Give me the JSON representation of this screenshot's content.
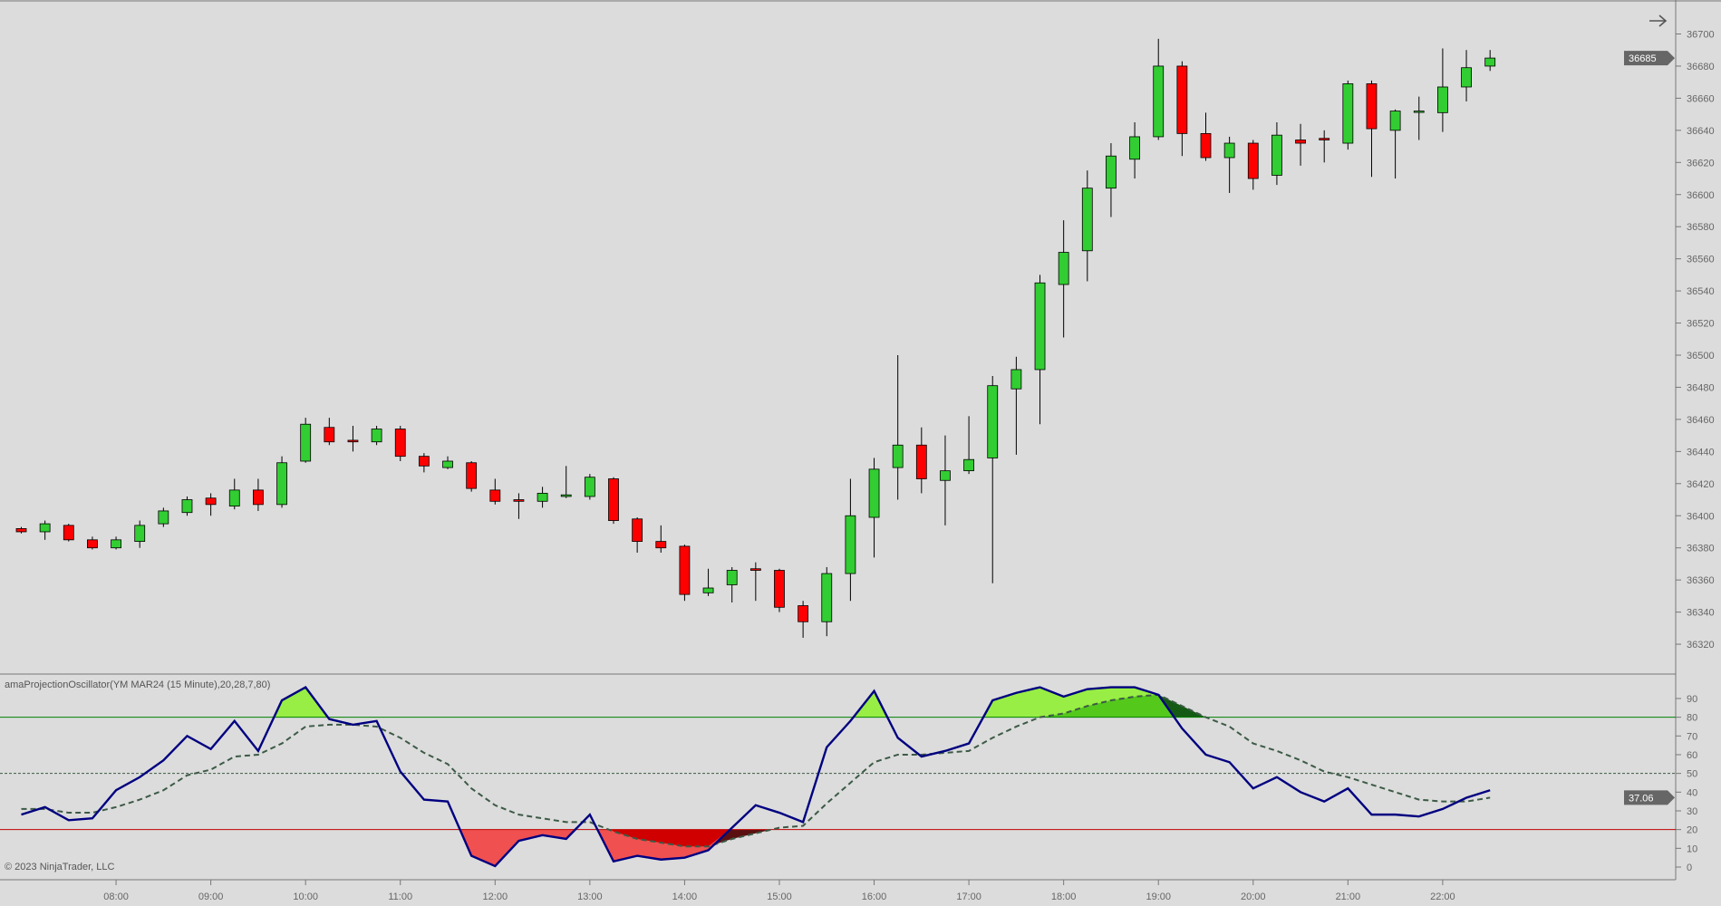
{
  "indicator_label": "amaProjectionOscillator(YM MAR24 (15 Minute),20,28,7,80)",
  "copyright": "© 2023 NinjaTrader, LLC",
  "icons": {
    "scroll": "arrow-right-icon"
  },
  "colors": {
    "up": "#32cd32",
    "down": "#ff0000",
    "oscillator": "#000080",
    "signal": "#3c5a46",
    "overbought_line": "#008000",
    "oversold_line": "#c00000",
    "ob_fill": "#98ee44",
    "ob_fill_both": "#55c81c",
    "ob_fill_signal": "#145a14",
    "os_fill": "#f05050",
    "os_fill_both": "#d00000",
    "os_fill_signal": "#5a1010"
  },
  "chart_data": [
    {
      "type": "candlestick",
      "instrument": "YM MAR24",
      "interval": "15 Minute",
      "x_ticks": [
        "08:00",
        "09:00",
        "10:00",
        "11:00",
        "12:00",
        "13:00",
        "14:00",
        "15:00",
        "16:00",
        "17:00",
        "18:00",
        "19:00",
        "20:00",
        "21:00",
        "22:00"
      ],
      "y_ticks": [
        36700,
        36680,
        36660,
        36640,
        36620,
        36600,
        36580,
        36560,
        36540,
        36520,
        36500,
        36480,
        36460,
        36440,
        36420,
        36400,
        36380,
        36360,
        36340,
        36320
      ],
      "ylim": [
        36300,
        36705
      ],
      "last_price": "36685",
      "times": [
        "07:00",
        "07:15",
        "07:30",
        "07:45",
        "08:00",
        "08:15",
        "08:30",
        "08:45",
        "09:00",
        "09:15",
        "09:30",
        "09:45",
        "10:00",
        "10:15",
        "10:30",
        "10:45",
        "11:00",
        "11:15",
        "11:30",
        "11:45",
        "12:00",
        "12:15",
        "12:30",
        "12:45",
        "13:00",
        "13:15",
        "13:30",
        "13:45",
        "14:00",
        "14:15",
        "14:30",
        "14:45",
        "15:00",
        "15:15",
        "15:30",
        "15:45",
        "16:00",
        "16:15",
        "16:30",
        "16:45",
        "17:00",
        "17:15",
        "17:30",
        "17:45",
        "18:00",
        "18:15",
        "18:30",
        "18:45",
        "19:00",
        "19:15",
        "19:30",
        "19:45",
        "20:00",
        "20:15",
        "20:30",
        "20:45",
        "21:00",
        "21:15",
        "21:30",
        "21:45",
        "22:00",
        "22:15",
        "22:30"
      ],
      "ohlc": [
        [
          36392,
          36393,
          36389,
          36390
        ],
        [
          36390,
          36397,
          36385,
          36395
        ],
        [
          36394,
          36395,
          36384,
          36385
        ],
        [
          36385,
          36387,
          36379,
          36380
        ],
        [
          36380,
          36387,
          36379,
          36385
        ],
        [
          36384,
          36397,
          36380,
          36394
        ],
        [
          36395,
          36405,
          36393,
          36403
        ],
        [
          36402,
          36412,
          36400,
          36410
        ],
        [
          36411,
          36414,
          36400,
          36407
        ],
        [
          36406,
          36423,
          36404,
          36416
        ],
        [
          36416,
          36423,
          36403,
          36407
        ],
        [
          36407,
          36437,
          36405,
          36433
        ],
        [
          36434,
          36461,
          36433,
          36457
        ],
        [
          36455,
          36461,
          36444,
          36446
        ],
        [
          36447,
          36456,
          36440,
          36446
        ],
        [
          36446,
          36456,
          36444,
          36454
        ],
        [
          36454,
          36456,
          36434,
          36437
        ],
        [
          36437,
          36439,
          36427,
          36431
        ],
        [
          36430,
          36437,
          36429,
          36434
        ],
        [
          36433,
          36434,
          36415,
          36417
        ],
        [
          36416,
          36423,
          36407,
          36409
        ],
        [
          36410,
          36414,
          36398,
          36409
        ],
        [
          36409,
          36418,
          36405,
          36414
        ],
        [
          36412,
          36431,
          36411,
          36413
        ],
        [
          36412,
          36426,
          36410,
          36424
        ],
        [
          36423,
          36424,
          36395,
          36397
        ],
        [
          36398,
          36399,
          36377,
          36384
        ],
        [
          36384,
          36394,
          36377,
          36380
        ],
        [
          36381,
          36382,
          36347,
          36351
        ],
        [
          36352,
          36367,
          36350,
          36355
        ],
        [
          36357,
          36368,
          36346,
          36366
        ],
        [
          36367,
          36371,
          36347,
          36366
        ],
        [
          36366,
          36367,
          36340,
          36343
        ],
        [
          36344,
          36347,
          36324,
          36334
        ],
        [
          36334,
          36368,
          36325,
          36364
        ],
        [
          36364,
          36423,
          36347,
          36400
        ],
        [
          36399,
          36436,
          36374,
          36429
        ],
        [
          36430,
          36500,
          36410,
          36444
        ],
        [
          36444,
          36455,
          36414,
          36423
        ],
        [
          36422,
          36450,
          36394,
          36428
        ],
        [
          36428,
          36462,
          36426,
          36435
        ],
        [
          36436,
          36487,
          36358,
          36481
        ],
        [
          36479,
          36499,
          36438,
          36491
        ],
        [
          36491,
          36550,
          36457,
          36545
        ],
        [
          36544,
          36584,
          36511,
          36564
        ],
        [
          36565,
          36615,
          36546,
          36604
        ],
        [
          36604,
          36632,
          36586,
          36624
        ],
        [
          36622,
          36645,
          36610,
          36636
        ],
        [
          36636,
          36697,
          36634,
          36680
        ],
        [
          36680,
          36683,
          36624,
          36638
        ],
        [
          36638,
          36651,
          36621,
          36623
        ],
        [
          36623,
          36636,
          36601,
          36632
        ],
        [
          36632,
          36634,
          36603,
          36610
        ],
        [
          36612,
          36645,
          36606,
          36637
        ],
        [
          36634,
          36644,
          36618,
          36632
        ],
        [
          36635,
          36640,
          36620,
          36634
        ],
        [
          36632,
          36671,
          36628,
          36669
        ],
        [
          36669,
          36671,
          36611,
          36641
        ],
        [
          36640,
          36653,
          36610,
          36652
        ],
        [
          36652,
          36661,
          36634,
          36652
        ],
        [
          36651,
          36691,
          36639,
          36667
        ],
        [
          36667,
          36690,
          36658,
          36679
        ],
        [
          36680,
          36690,
          36677,
          36685
        ]
      ]
    },
    {
      "type": "line",
      "title": "amaProjectionOscillator(YM MAR24 (15 Minute),20,28,7,80)",
      "y_ticks": [
        90,
        80,
        70,
        60,
        50,
        40,
        30,
        20,
        10,
        0
      ],
      "ylim": [
        -4,
        100
      ],
      "levels": {
        "overbought": 80,
        "mid": 50,
        "oversold": 20
      },
      "last_value": "37.06",
      "series": [
        {
          "values": [
            28,
            32,
            25,
            26,
            41,
            48,
            57,
            70,
            63,
            78,
            62,
            89,
            96,
            79,
            76,
            78,
            51,
            36,
            35,
            6,
            0.5,
            14,
            17,
            15,
            28,
            3,
            6,
            4,
            5,
            9,
            21,
            33,
            29,
            24,
            64,
            78,
            94,
            69,
            59,
            62,
            66,
            89,
            93,
            96,
            91,
            95,
            96,
            96,
            92,
            74,
            60,
            56,
            42,
            48,
            40,
            35,
            42,
            28,
            28,
            27,
            31,
            37,
            41
          ]
        },
        {
          "values": [
            31,
            31,
            29,
            29,
            32,
            36,
            41,
            49,
            52,
            59,
            60,
            66,
            75,
            76,
            76,
            75,
            69,
            61,
            55,
            42,
            33,
            28,
            26,
            24,
            24,
            19,
            15,
            13,
            11,
            11,
            15,
            18,
            21,
            22,
            34,
            45,
            56,
            60,
            60,
            61,
            62,
            69,
            75,
            80,
            82,
            86,
            89,
            91,
            92,
            86,
            80,
            75,
            66,
            62,
            57,
            51,
            48,
            44,
            40,
            36,
            35,
            35,
            37.06
          ]
        }
      ]
    }
  ]
}
